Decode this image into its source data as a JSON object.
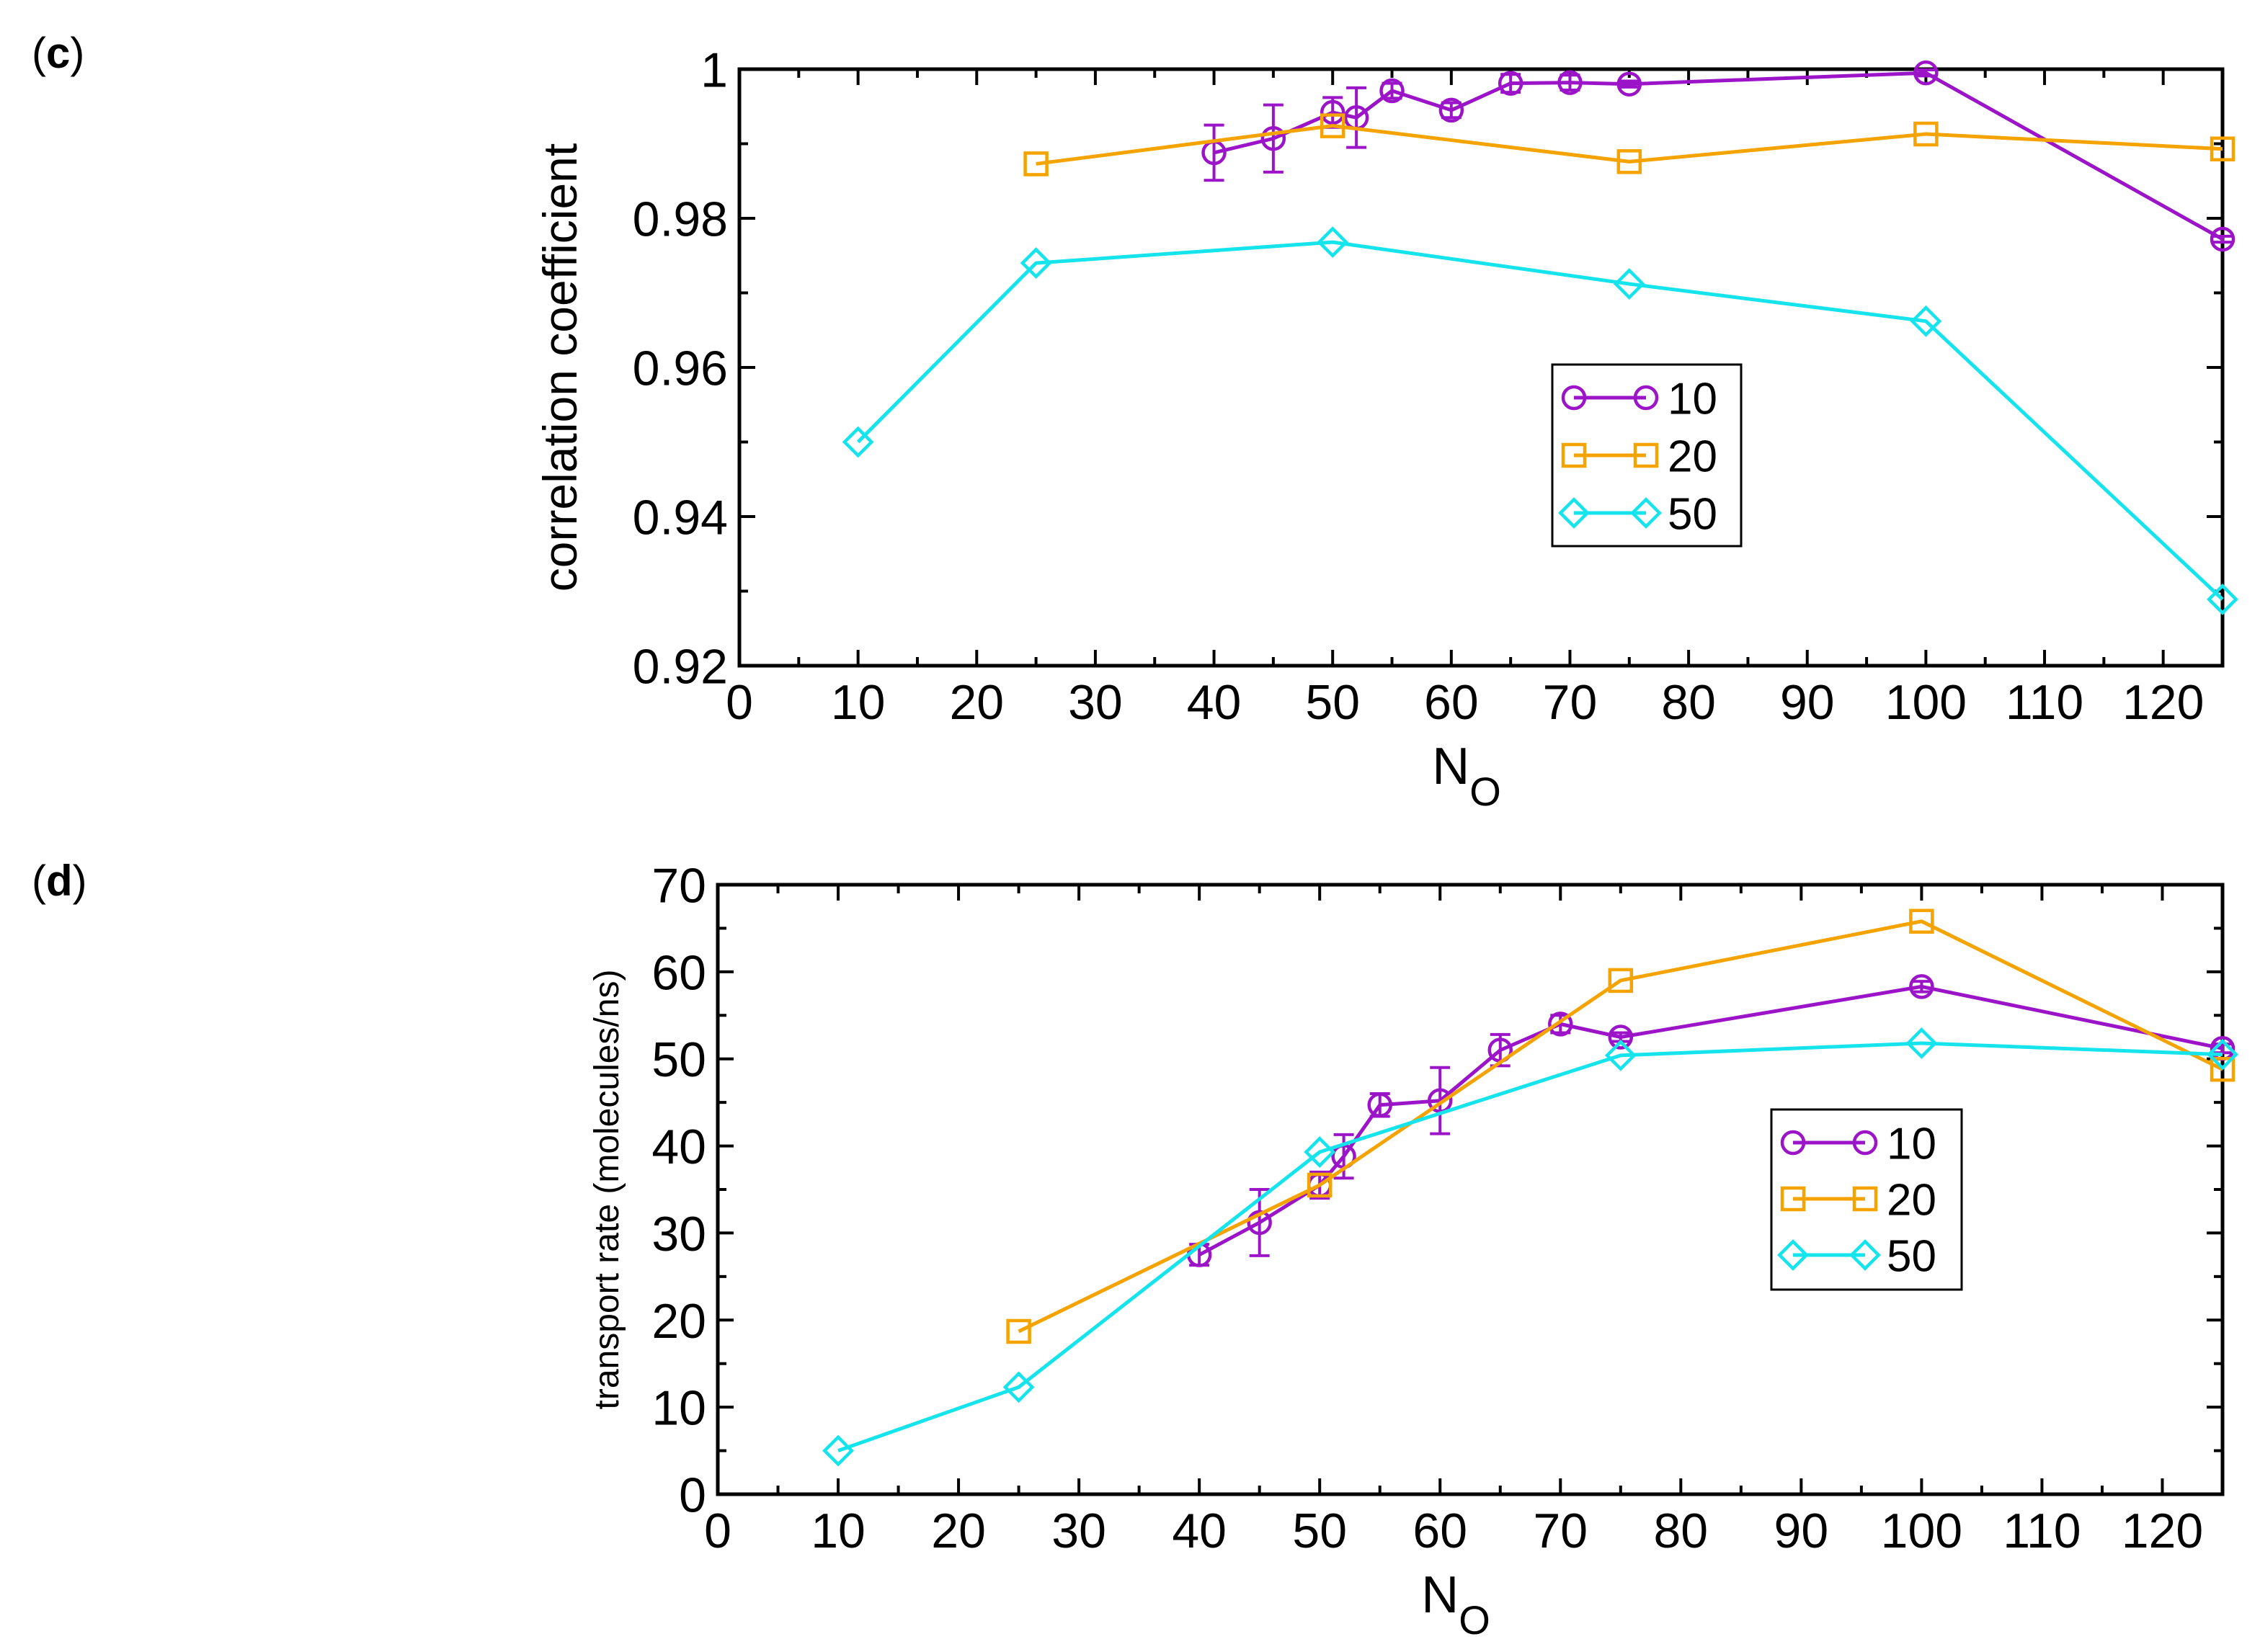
{
  "panels": {
    "c": {
      "open": "(",
      "letter": "c",
      "close": ")"
    },
    "d": {
      "open": "(",
      "letter": "d",
      "close": ")"
    }
  },
  "colors": {
    "s10": "#9b14c8",
    "s20": "#f5a300",
    "s50": "#16e4ec",
    "axis": "#000000"
  },
  "chart_data": [
    {
      "id": "c",
      "type": "line",
      "title": "",
      "xlabel": "N",
      "xlabel_sub": "O",
      "ylabel": "correlation coefficient",
      "xlim": [
        0,
        125
      ],
      "ylim": [
        0.92,
        1.0
      ],
      "xticks": [
        0,
        10,
        20,
        30,
        40,
        50,
        60,
        70,
        80,
        90,
        100,
        110,
        120
      ],
      "xtick_labels": [
        "0",
        "10",
        "20",
        "30",
        "40",
        "50",
        "60",
        "70",
        "80",
        "90",
        "100",
        "110",
        "120"
      ],
      "yticks": [
        0.92,
        0.94,
        0.96,
        0.98,
        1.0
      ],
      "ytick_labels": [
        "0.92",
        "0.94",
        "0.96",
        "0.98",
        "1"
      ],
      "legend_position": "center-right",
      "series": [
        {
          "name": "10",
          "color": "#9b14c8",
          "marker": "circle",
          "x": [
            40,
            45,
            50,
            52,
            55,
            60,
            65,
            70,
            75,
            100,
            125
          ],
          "y": [
            0.9888,
            0.9907,
            0.9942,
            0.9935,
            0.9971,
            0.9945,
            0.9981,
            0.9982,
            0.998,
            0.9995,
            0.9772
          ],
          "err": [
            0.0037,
            0.0045,
            0.002,
            0.004,
            0.001,
            0.001,
            0.0012,
            0.001,
            0.0004,
            0.0004,
            0.0004
          ]
        },
        {
          "name": "20",
          "color": "#f5a300",
          "marker": "square",
          "x": [
            25,
            50,
            75,
            100,
            125
          ],
          "y": [
            0.9873,
            0.9924,
            0.9876,
            0.9913,
            0.9893
          ]
        },
        {
          "name": "50",
          "color": "#16e4ec",
          "marker": "diamond",
          "x": [
            10,
            25,
            50,
            75,
            100,
            125
          ],
          "y": [
            0.95,
            0.974,
            0.9768,
            0.9712,
            0.9662,
            0.9289
          ]
        }
      ]
    },
    {
      "id": "d",
      "type": "line",
      "title": "",
      "xlabel": "N",
      "xlabel_sub": "O",
      "ylabel": "transport rate (molecules/ns)",
      "xlim": [
        0,
        125
      ],
      "ylim": [
        0,
        70
      ],
      "xticks": [
        0,
        10,
        20,
        30,
        40,
        50,
        60,
        70,
        80,
        90,
        100,
        110,
        120
      ],
      "xtick_labels": [
        "0",
        "10",
        "20",
        "30",
        "40",
        "50",
        "60",
        "70",
        "80",
        "90",
        "100",
        "110",
        "120"
      ],
      "yticks": [
        0,
        10,
        20,
        30,
        40,
        50,
        60,
        70
      ],
      "ytick_labels": [
        "0",
        "10",
        "20",
        "30",
        "40",
        "50",
        "60",
        "70"
      ],
      "legend_position": "center-right",
      "series": [
        {
          "name": "10",
          "color": "#9b14c8",
          "marker": "circle",
          "x": [
            40,
            45,
            50,
            52,
            55,
            60,
            65,
            70,
            75,
            100,
            125
          ],
          "y": [
            27.5,
            31.2,
            35.5,
            38.8,
            44.7,
            45.2,
            51.0,
            54.0,
            52.5,
            58.3,
            51.2
          ],
          "err": [
            1.2,
            3.8,
            1.5,
            2.5,
            1.3,
            3.8,
            1.8,
            1.0,
            0.5,
            0.6,
            0.5
          ]
        },
        {
          "name": "20",
          "color": "#f5a300",
          "marker": "square",
          "x": [
            25,
            50,
            75,
            100,
            125
          ],
          "y": [
            18.7,
            35.5,
            59.0,
            65.8,
            48.8
          ]
        },
        {
          "name": "50",
          "color": "#16e4ec",
          "marker": "diamond",
          "x": [
            10,
            25,
            50,
            75,
            100,
            125
          ],
          "y": [
            5.0,
            12.3,
            39.3,
            50.4,
            51.8,
            50.5
          ]
        }
      ]
    }
  ]
}
